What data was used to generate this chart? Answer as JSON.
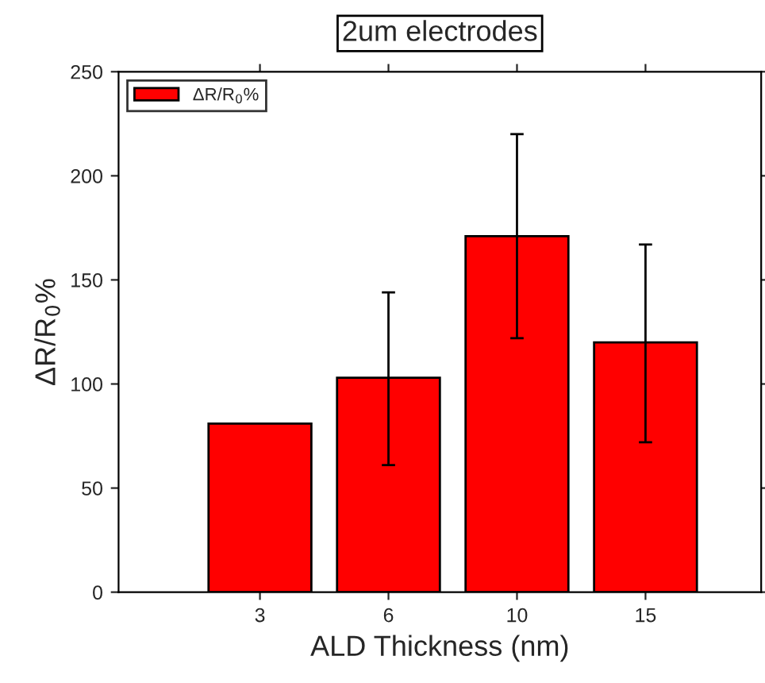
{
  "chart_data": {
    "type": "bar",
    "title": "2um electrodes",
    "xlabel": "ALD Thickness (nm)",
    "ylabel": "ΔR/R$_{0}$%",
    "categories": [
      "3",
      "6",
      "10",
      "15"
    ],
    "series": [
      {
        "name": "ΔR/R$_{0}$%",
        "color": "#ff0000",
        "values": [
          81,
          103,
          171,
          120
        ],
        "errors": [
          null,
          [
            61,
            144
          ],
          [
            122,
            220
          ],
          [
            72,
            167
          ]
        ]
      }
    ],
    "ylim": [
      0,
      250
    ],
    "yticks": [
      0,
      50,
      100,
      150,
      200,
      250
    ],
    "grid": false,
    "legend": "top left"
  }
}
